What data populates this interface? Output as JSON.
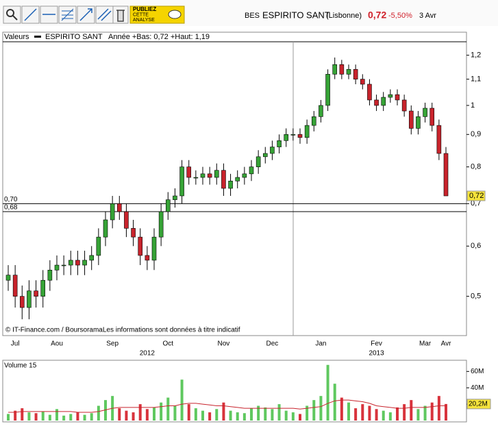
{
  "toolbar": {
    "button": [
      "PUBLIEZ",
      "CETTE",
      "ANALYSE"
    ]
  },
  "header": {
    "code": "BES",
    "name": "ESPIRITO SANT",
    "market": "(Lisbonne)",
    "price": "0,72",
    "change": "-5,50%",
    "date": "3 Avr"
  },
  "chart_data": [
    {
      "type": "candlestick",
      "legend_title": "Valeurs",
      "series_name": "ESPIRITO SANT",
      "summary": "Année +Bas: 0,72 +Haut: 1,19",
      "source": "© IT-Finance.com / BoursoramaLes informations sont données à titre indicatif",
      "log_scale": true,
      "up_color": "#36a336",
      "down_color": "#c8232c",
      "categories": [
        null,
        "Jul",
        null,
        null,
        null,
        null,
        null,
        "Aou",
        null,
        null,
        null,
        null,
        null,
        null,
        null,
        "Sep",
        null,
        null,
        null,
        null,
        null,
        null,
        null,
        "Oct",
        null,
        null,
        null,
        null,
        null,
        null,
        null,
        "Nov",
        null,
        null,
        null,
        null,
        null,
        null,
        "Dec",
        null,
        null,
        null,
        null,
        null,
        null,
        "Jan",
        null,
        null,
        null,
        null,
        null,
        null,
        null,
        "Fev",
        null,
        null,
        null,
        null,
        null,
        null,
        "Mar",
        null,
        null,
        "Avr"
      ],
      "years": [
        null,
        null,
        null,
        null,
        null,
        null,
        null,
        null,
        null,
        null,
        null,
        null,
        null,
        null,
        null,
        null,
        null,
        null,
        null,
        null,
        "2012",
        null,
        null,
        null,
        null,
        null,
        null,
        null,
        null,
        null,
        null,
        null,
        null,
        null,
        null,
        null,
        null,
        null,
        null,
        null,
        null,
        null,
        null,
        null,
        null,
        null,
        null,
        null,
        null,
        null,
        null,
        null,
        null,
        "2013",
        null,
        null,
        null,
        null,
        null,
        null,
        null,
        null,
        null,
        null
      ],
      "open": [
        0.53,
        0.54,
        0.5,
        0.48,
        0.51,
        0.5,
        0.53,
        0.55,
        0.56,
        0.56,
        0.57,
        0.56,
        0.57,
        0.58,
        0.62,
        0.66,
        0.7,
        0.68,
        0.64,
        0.62,
        0.58,
        0.57,
        0.62,
        0.68,
        0.71,
        0.72,
        0.8,
        0.77,
        0.77,
        0.78,
        0.77,
        0.79,
        0.74,
        0.76,
        0.77,
        0.78,
        0.8,
        0.83,
        0.84,
        0.86,
        0.88,
        0.9,
        0.9,
        0.89,
        0.93,
        0.96,
        1.0,
        1.12,
        1.16,
        1.12,
        1.14,
        1.1,
        1.08,
        1.02,
        1.0,
        1.03,
        1.04,
        1.02,
        0.98,
        0.92,
        0.96,
        0.99,
        0.93,
        0.84
      ],
      "high": [
        0.56,
        0.56,
        0.52,
        0.53,
        0.53,
        0.55,
        0.57,
        0.58,
        0.58,
        0.59,
        0.59,
        0.59,
        0.6,
        0.64,
        0.68,
        0.72,
        0.72,
        0.7,
        0.66,
        0.64,
        0.6,
        0.64,
        0.7,
        0.73,
        0.74,
        0.82,
        0.82,
        0.79,
        0.8,
        0.8,
        0.81,
        0.81,
        0.78,
        0.79,
        0.8,
        0.82,
        0.85,
        0.86,
        0.88,
        0.9,
        0.92,
        0.92,
        0.92,
        0.95,
        0.98,
        1.02,
        1.14,
        1.19,
        1.18,
        1.16,
        1.16,
        1.12,
        1.1,
        1.04,
        1.05,
        1.06,
        1.06,
        1.04,
        1.0,
        0.98,
        1.01,
        1.01,
        0.95,
        0.86
      ],
      "low": [
        0.51,
        0.48,
        0.46,
        0.46,
        0.48,
        0.48,
        0.51,
        0.53,
        0.54,
        0.54,
        0.54,
        0.54,
        0.55,
        0.56,
        0.6,
        0.64,
        0.66,
        0.62,
        0.6,
        0.56,
        0.55,
        0.55,
        0.6,
        0.66,
        0.69,
        0.7,
        0.75,
        0.75,
        0.75,
        0.75,
        0.75,
        0.72,
        0.72,
        0.74,
        0.75,
        0.76,
        0.78,
        0.81,
        0.82,
        0.84,
        0.86,
        0.88,
        0.87,
        0.87,
        0.91,
        0.94,
        0.98,
        1.1,
        1.1,
        1.1,
        1.08,
        1.06,
        1.0,
        0.98,
        0.98,
        1.01,
        1.0,
        0.96,
        0.9,
        0.9,
        0.94,
        0.91,
        0.82,
        0.72
      ],
      "close": [
        0.54,
        0.5,
        0.48,
        0.51,
        0.5,
        0.53,
        0.55,
        0.56,
        0.56,
        0.57,
        0.56,
        0.57,
        0.58,
        0.62,
        0.66,
        0.7,
        0.68,
        0.64,
        0.62,
        0.58,
        0.57,
        0.62,
        0.68,
        0.71,
        0.72,
        0.8,
        0.77,
        0.77,
        0.78,
        0.77,
        0.79,
        0.74,
        0.76,
        0.77,
        0.78,
        0.8,
        0.83,
        0.84,
        0.86,
        0.88,
        0.9,
        0.9,
        0.89,
        0.93,
        0.96,
        1.0,
        1.12,
        1.16,
        1.12,
        1.14,
        1.1,
        1.08,
        1.02,
        1.0,
        1.03,
        1.04,
        1.02,
        0.98,
        0.92,
        0.96,
        0.99,
        0.93,
        0.84,
        0.72
      ],
      "ylim": [
        0.45,
        1.26
      ],
      "yticks": [
        {
          "value": 0.5,
          "label": "0,5"
        },
        {
          "value": 0.6,
          "label": "0,6"
        },
        {
          "value": 0.7,
          "label": "0,7"
        },
        {
          "value": 0.8,
          "label": "0,8"
        },
        {
          "value": 0.9,
          "label": "0,9"
        },
        1,
        {
          "value": 1.1,
          "label": "1,1"
        },
        {
          "value": 1.2,
          "label": "1,2"
        }
      ],
      "hlines": [
        {
          "value": 0.7,
          "label": "0,70"
        },
        {
          "value": 0.68,
          "label": "0,68"
        }
      ],
      "current": {
        "value": 0.72,
        "label": "0,72"
      }
    },
    {
      "type": "bar",
      "title": "Volume 15",
      "values": [
        8,
        12,
        15,
        10,
        9,
        11,
        7,
        14,
        6,
        8,
        10,
        7,
        9,
        18,
        25,
        30,
        15,
        12,
        10,
        20,
        14,
        16,
        22,
        28,
        18,
        50,
        20,
        15,
        12,
        10,
        14,
        22,
        12,
        10,
        9,
        15,
        18,
        16,
        14,
        20,
        12,
        10,
        8,
        18,
        25,
        30,
        68,
        45,
        28,
        22,
        15,
        20,
        18,
        14,
        12,
        10,
        16,
        20,
        25,
        14,
        18,
        22,
        30,
        20.2
      ],
      "ma": {
        "color": "#c8232c",
        "values": [
          10,
          10,
          11,
          11,
          11,
          11,
          11,
          11,
          11,
          11,
          10,
          10,
          10,
          11,
          13,
          15,
          16,
          16,
          16,
          16,
          16,
          16,
          17,
          18,
          18,
          20,
          21,
          21,
          20,
          19,
          18,
          18,
          17,
          16,
          15,
          15,
          15,
          15,
          15,
          15,
          15,
          15,
          14,
          15,
          16,
          17,
          21,
          24,
          25,
          25,
          24,
          23,
          21,
          18,
          17,
          16,
          15,
          15,
          16,
          16,
          16,
          17,
          18,
          18
        ]
      },
      "ylim": [
        0,
        72
      ],
      "yticks": [
        {
          "value": 20,
          "label": "20M"
        },
        {
          "value": 40,
          "label": "40M"
        },
        {
          "value": 60,
          "label": "60M"
        }
      ],
      "current": {
        "value": 20.2,
        "label": "20,2M"
      }
    }
  ]
}
